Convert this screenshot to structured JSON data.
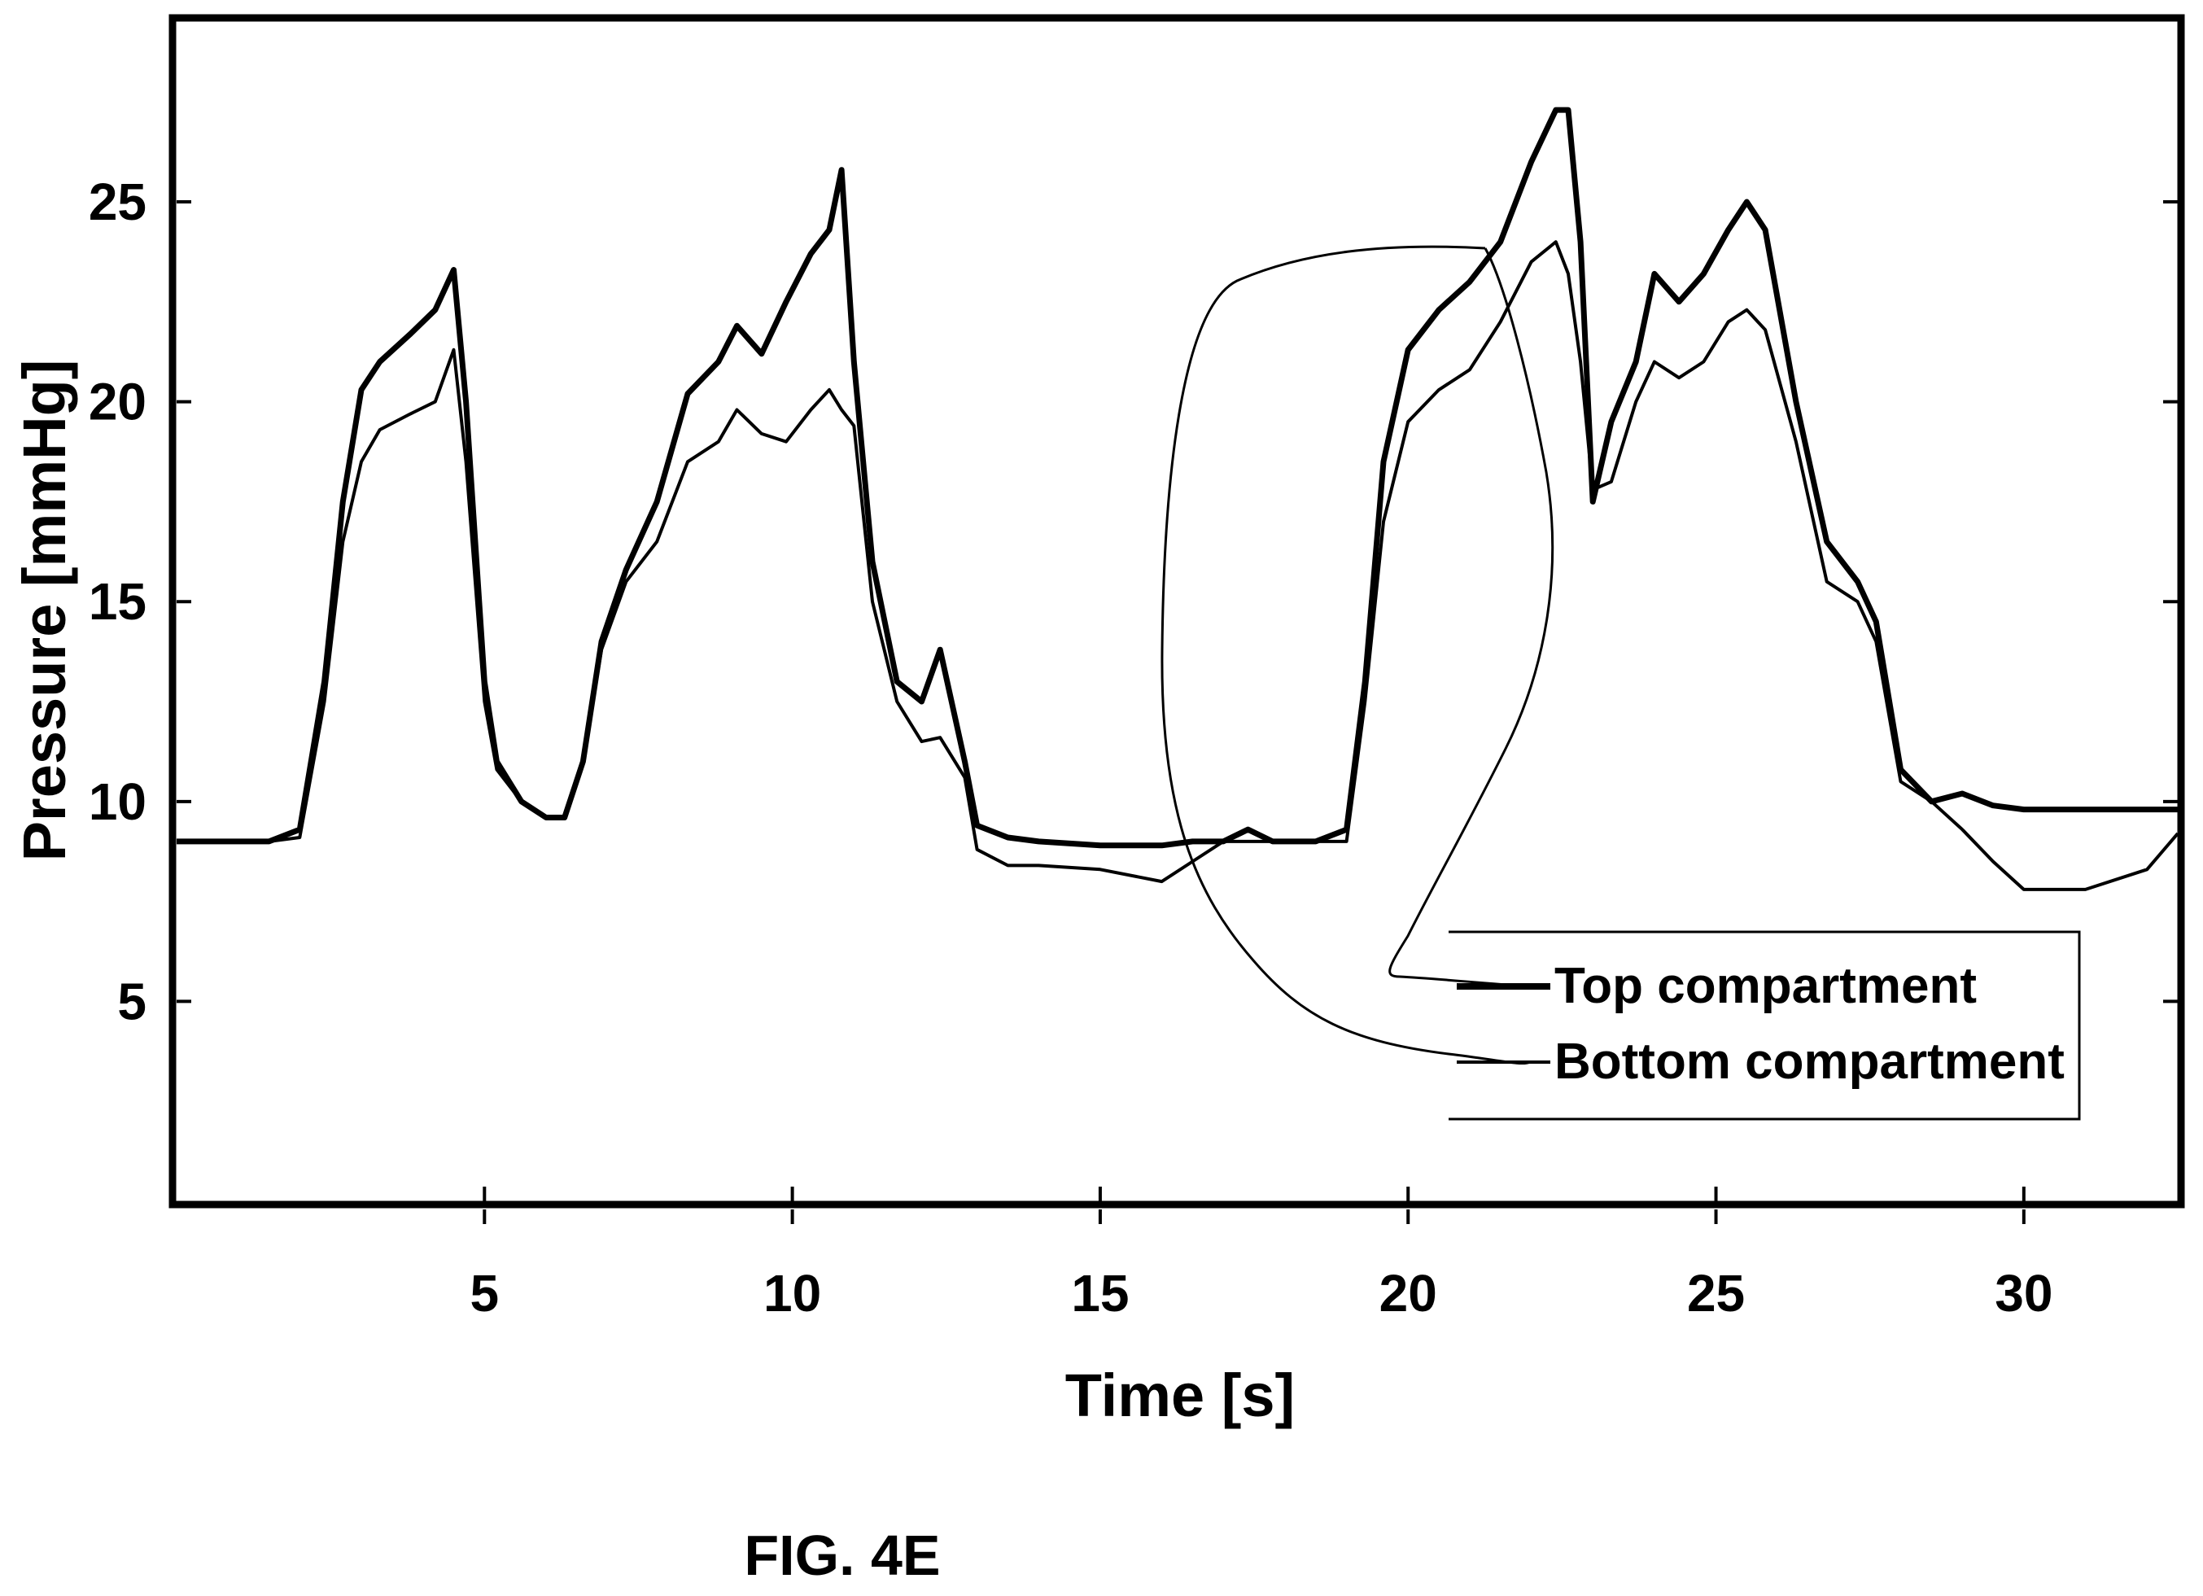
{
  "caption": "FIG. 4E",
  "chart_data": {
    "type": "line",
    "xlabel": "Time [s]",
    "ylabel": "Pressure [mmHg]",
    "xlim": [
      0,
      32.5
    ],
    "ylim": [
      0,
      29.5
    ],
    "xticks": [
      5,
      10,
      15,
      20,
      25,
      30
    ],
    "yticks": [
      5,
      10,
      15,
      20,
      25
    ],
    "grid": false,
    "legend_position": "bottom-right",
    "series": [
      {
        "name": "Top compartment",
        "color": "#000000",
        "x": [
          0,
          1.5,
          2.0,
          2.4,
          2.7,
          3.0,
          3.3,
          3.8,
          4.2,
          4.5,
          4.7,
          5.0,
          5.2,
          5.6,
          6.0,
          6.3,
          6.6,
          6.9,
          7.3,
          7.8,
          8.3,
          8.8,
          9.1,
          9.5,
          9.9,
          10.3,
          10.6,
          10.8,
          11.0,
          11.3,
          11.7,
          12.1,
          12.4,
          12.8,
          13.0,
          13.5,
          14.0,
          15.0,
          16.0,
          16.5,
          17.0,
          17.4,
          17.8,
          18.5,
          19.0,
          19.3,
          19.6,
          20.0,
          20.5,
          21.0,
          21.5,
          22.0,
          22.4,
          22.6,
          22.8,
          23.0,
          23.3,
          23.7,
          24.0,
          24.4,
          24.8,
          25.2,
          25.5,
          25.8,
          26.3,
          26.8,
          27.3,
          27.6,
          28.0,
          28.5,
          29.0,
          29.5,
          30.0,
          31.0,
          32.0,
          32.5
        ],
        "y": [
          9.0,
          9.0,
          9.3,
          13.0,
          17.5,
          20.3,
          21.0,
          21.7,
          22.3,
          23.3,
          20.0,
          13.0,
          11.0,
          10.0,
          9.6,
          9.6,
          11.0,
          14.0,
          15.8,
          17.5,
          20.2,
          21.0,
          21.9,
          21.2,
          22.5,
          23.7,
          24.3,
          25.8,
          21.0,
          16.0,
          13.0,
          12.5,
          13.8,
          11.0,
          9.4,
          9.1,
          9.0,
          8.9,
          8.9,
          9.0,
          9.0,
          9.3,
          9.0,
          9.0,
          9.3,
          13.0,
          18.5,
          21.3,
          22.3,
          23.0,
          24.0,
          26.0,
          27.3,
          27.3,
          24.0,
          17.5,
          19.5,
          21.0,
          23.2,
          22.5,
          23.2,
          24.3,
          25.0,
          24.3,
          20.0,
          16.5,
          15.5,
          14.5,
          10.8,
          10.0,
          10.2,
          9.9,
          9.8,
          9.8,
          9.8,
          9.8
        ]
      },
      {
        "name": "Bottom compartment",
        "color": "#000000",
        "x": [
          0,
          1.5,
          2.0,
          2.4,
          2.7,
          3.0,
          3.3,
          3.8,
          4.2,
          4.5,
          4.7,
          5.0,
          5.2,
          5.6,
          6.0,
          6.3,
          6.6,
          6.9,
          7.3,
          7.8,
          8.3,
          8.8,
          9.1,
          9.5,
          9.9,
          10.3,
          10.6,
          10.8,
          11.0,
          11.3,
          11.7,
          12.1,
          12.4,
          12.8,
          13.0,
          13.5,
          14.0,
          15.0,
          16.0,
          16.5,
          17.0,
          17.4,
          17.8,
          18.5,
          19.0,
          19.3,
          19.6,
          20.0,
          20.5,
          21.0,
          21.5,
          22.0,
          22.4,
          22.6,
          22.8,
          23.0,
          23.3,
          23.7,
          24.0,
          24.4,
          24.8,
          25.2,
          25.5,
          25.8,
          26.3,
          26.8,
          27.3,
          27.6,
          28.0,
          28.5,
          29.0,
          29.5,
          30.0,
          31.0,
          32.0,
          32.5
        ],
        "y": [
          9.0,
          9.0,
          9.1,
          12.5,
          16.5,
          18.5,
          19.3,
          19.7,
          20.0,
          21.3,
          18.5,
          12.5,
          10.8,
          10.0,
          9.6,
          9.6,
          11.0,
          13.8,
          15.5,
          16.5,
          18.5,
          19.0,
          19.8,
          19.2,
          19.0,
          19.8,
          20.3,
          19.8,
          19.4,
          15.0,
          12.5,
          11.5,
          11.6,
          10.6,
          8.8,
          8.4,
          8.4,
          8.3,
          8.0,
          8.5,
          9.0,
          9.0,
          9.0,
          9.0,
          9.0,
          12.5,
          17.0,
          19.5,
          20.3,
          20.8,
          22.0,
          23.5,
          24.0,
          23.2,
          21.0,
          17.8,
          18.0,
          20.0,
          21.0,
          20.6,
          21.0,
          22.0,
          22.3,
          21.8,
          19.0,
          15.5,
          15.0,
          14.0,
          10.5,
          10.0,
          9.3,
          8.5,
          7.8,
          7.8,
          8.3,
          9.2
        ]
      }
    ],
    "annotation": {
      "type": "freehand-loop",
      "description": "hand-drawn loop linking the legend to the traces near 20 s"
    }
  }
}
